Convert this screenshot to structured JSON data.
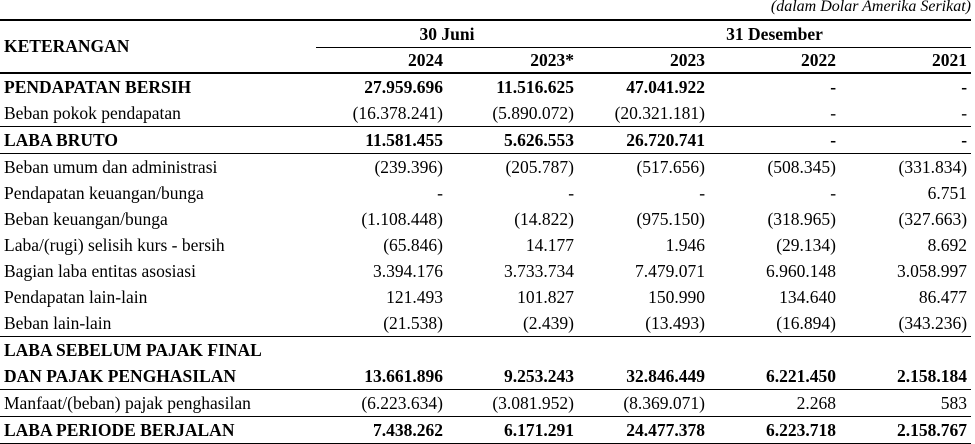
{
  "unit_note": "(dalam Dolar Amerika Serikat)",
  "header": {
    "keterangan": "KETERANGAN",
    "period_june": "30 Juni",
    "period_december": "31 Desember",
    "years": [
      "2024",
      "2023*",
      "2023",
      "2022",
      "2021"
    ]
  },
  "rows": [
    {
      "label": "PENDAPATAN BERSIH",
      "bold": true,
      "values": [
        "27.959.696",
        "11.516.625",
        "47.041.922",
        "-",
        "-"
      ]
    },
    {
      "label": "Beban pokok pendapatan",
      "bold": false,
      "values": [
        "(16.378.241)",
        "(5.890.072)",
        "(20.321.181)",
        "-",
        "-"
      ]
    },
    {
      "label": "LABA BRUTO",
      "bold": true,
      "values": [
        "11.581.455",
        "5.626.553",
        "26.720.741",
        "-",
        "-"
      ]
    },
    {
      "label": "Beban umum dan administrasi",
      "bold": false,
      "values": [
        "(239.396)",
        "(205.787)",
        "(517.656)",
        "(508.345)",
        "(331.834)"
      ]
    },
    {
      "label": "Pendapatan keuangan/bunga",
      "bold": false,
      "values": [
        "-",
        "-",
        "-",
        "-",
        "6.751"
      ]
    },
    {
      "label": "Beban keuangan/bunga",
      "bold": false,
      "values": [
        "(1.108.448)",
        "(14.822)",
        "(975.150)",
        "(318.965)",
        "(327.663)"
      ]
    },
    {
      "label": "Laba/(rugi) selisih kurs - bersih",
      "bold": false,
      "values": [
        "(65.846)",
        "14.177",
        "1.946",
        "(29.134)",
        "8.692"
      ]
    },
    {
      "label": "Bagian laba entitas asosiasi",
      "bold": false,
      "values": [
        "3.394.176",
        "3.733.734",
        "7.479.071",
        "6.960.148",
        "3.058.997"
      ]
    },
    {
      "label": "Pendapatan lain-lain",
      "bold": false,
      "values": [
        "121.493",
        "101.827",
        "150.990",
        "134.640",
        "86.477"
      ]
    },
    {
      "label": "Beban lain-lain",
      "bold": false,
      "values": [
        "(21.538)",
        "(2.439)",
        "(13.493)",
        "(16.894)",
        "(343.236)"
      ]
    },
    {
      "label": "LABA SEBELUM PAJAK FINAL",
      "bold": true,
      "values": [
        "",
        "",
        "",
        "",
        ""
      ]
    },
    {
      "label": "DAN PAJAK PENGHASILAN",
      "bold": true,
      "values": [
        "13.661.896",
        "9.253.243",
        "32.846.449",
        "6.221.450",
        "2.158.184"
      ]
    },
    {
      "label": "Manfaat/(beban) pajak penghasilan",
      "bold": false,
      "values": [
        "(6.223.634)",
        "(3.081.952)",
        "(8.369.071)",
        "2.268",
        "583"
      ]
    },
    {
      "label": "LABA PERIODE BERJALAN",
      "bold": true,
      "values": [
        "7.438.262",
        "6.171.291",
        "24.477.378",
        "6.223.718",
        "2.158.767"
      ]
    }
  ]
}
